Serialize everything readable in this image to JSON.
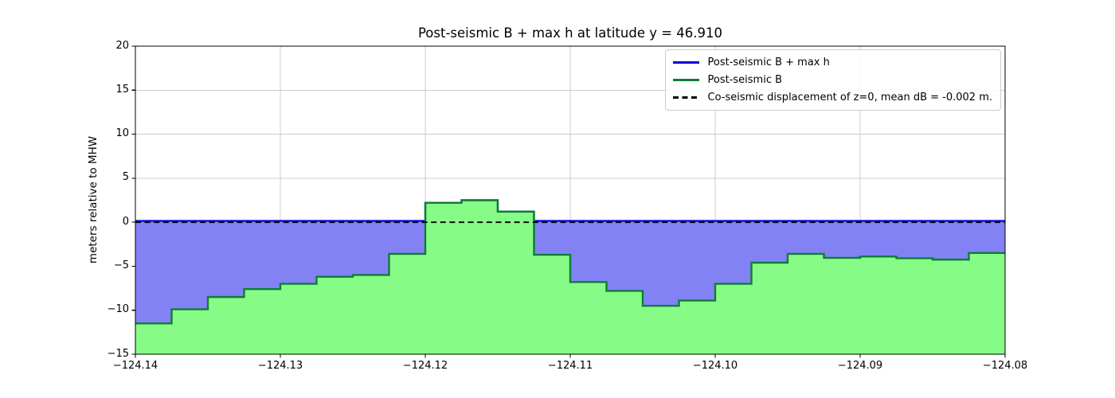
{
  "chart_data": {
    "type": "area",
    "title": "Post-seismic B + max h at latitude y = 46.910",
    "ylabel": "meters relative to MHW",
    "xlabel": "",
    "xlim": [
      -124.14,
      -124.08
    ],
    "ylim": [
      -15,
      20
    ],
    "x_ticks": [
      -124.14,
      -124.13,
      -124.12,
      -124.11,
      -124.1,
      -124.09,
      -124.08
    ],
    "x_tick_labels": [
      "−124.14",
      "−124.13",
      "−124.12",
      "−124.11",
      "−124.10",
      "−124.09",
      "−124.08"
    ],
    "y_ticks": [
      -15,
      -10,
      -5,
      0,
      5,
      10,
      15,
      20
    ],
    "y_tick_labels": [
      "−15",
      "−10",
      "−5",
      "0",
      "5",
      "10",
      "15",
      "20"
    ],
    "grid": true,
    "legend_position": "upper right",
    "x_step_start": -124.14,
    "x_step_width": 0.0025,
    "series": [
      {
        "name": "Post-seismic B + max h",
        "style": "solid",
        "color": "#0000dd",
        "flat_value": 0.15,
        "rule": "max(B, flat_value)"
      },
      {
        "name": "Post-seismic B",
        "style": "solid",
        "color": "#0e7d33",
        "step_values": [
          -11.5,
          -9.9,
          -8.5,
          -7.6,
          -7.0,
          -6.2,
          -6.0,
          -3.6,
          2.2,
          2.5,
          1.2,
          -3.7,
          -6.8,
          -7.8,
          -9.5,
          -8.9,
          -7.0,
          -4.6,
          -3.6,
          -4.05,
          -3.9,
          -4.1,
          -4.25,
          -3.5
        ]
      },
      {
        "name": "Co-seismic displacement of z=0, mean dB = -0.002 m.",
        "style": "dashed",
        "color": "#000000",
        "flat_value": 0.0
      }
    ],
    "fill_colors": {
      "water_fill": "#8282f4",
      "land_fill": "#86fb86"
    },
    "axis_colors": {
      "grid": "#cccccc",
      "spine": "#000000"
    }
  }
}
